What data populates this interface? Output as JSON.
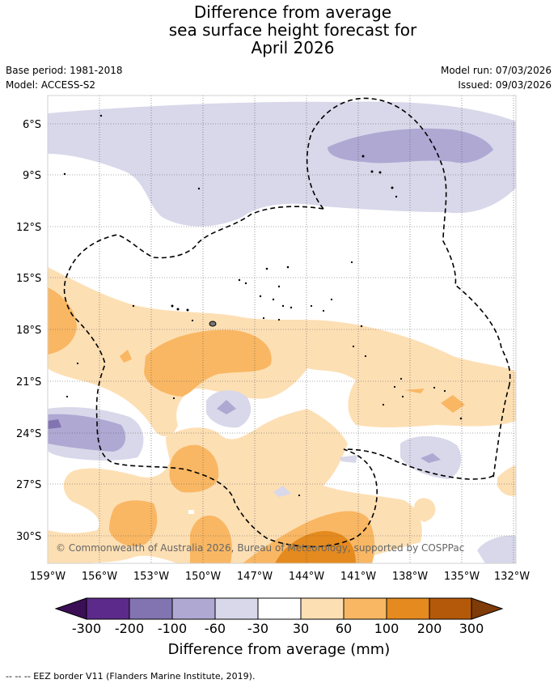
{
  "title": {
    "line1": "Difference from average",
    "line2": "sea surface height forecast for",
    "line3": "April 2026"
  },
  "meta": {
    "base_period": "Base period: 1981-2018",
    "model": "Model: ACCESS-S2",
    "model_run": "Model run: 07/03/2026",
    "issued": "Issued: 09/03/2026"
  },
  "copyright": "© Commonwealth of Australia 2026, Bureau of Meteorology, supported by COSPPac",
  "axes": {
    "lat_labels": [
      "6°S",
      "9°S",
      "12°S",
      "15°S",
      "18°S",
      "21°S",
      "24°S",
      "27°S",
      "30°S"
    ],
    "lon_labels": [
      "159°W",
      "156°W",
      "153°W",
      "150°W",
      "147°W",
      "144°W",
      "141°W",
      "138°W",
      "135°W",
      "132°W"
    ]
  },
  "colorbar": {
    "label": "Difference from average (mm)",
    "ticks": [
      "-300",
      "-200",
      "-100",
      "-60",
      "-30",
      "30",
      "60",
      "100",
      "200",
      "300"
    ],
    "colors": {
      "below": "#3b0e55",
      "n300": "#5c2a8a",
      "n200": "#8274b0",
      "n100": "#aea8d3",
      "n60": "#d8d8ea",
      "zero": "#ffffff",
      "p30": "#fddfb4",
      "p60": "#f9b763",
      "p100": "#e58a1e",
      "p200": "#b4590a",
      "above": "#7f3b08"
    }
  },
  "footer": "--  --  -- EEZ border V11 (Flanders Marine Institute, 2019)."
}
